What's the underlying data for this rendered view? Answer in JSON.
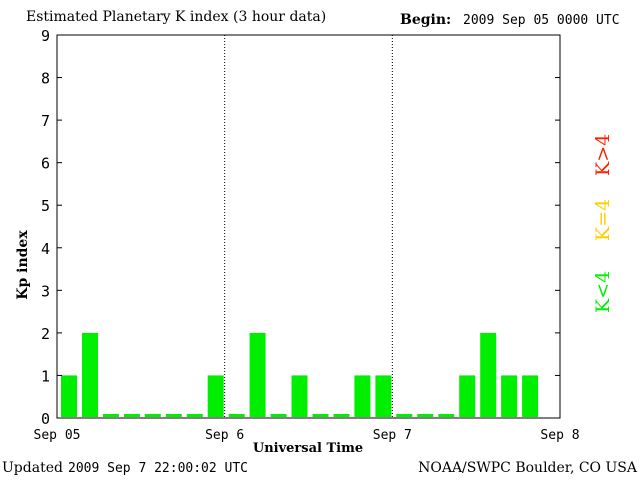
{
  "header": {
    "title": "Estimated Planetary K index (3 hour data)",
    "begin_label": "Begin:",
    "begin_value": "2009 Sep 05 0000 UTC"
  },
  "footer": {
    "updated_label": "Updated",
    "updated_value": "2009 Sep  7 22:00:02 UTC",
    "source": "NOAA/SWPC Boulder, CO USA"
  },
  "legend": {
    "high": {
      "label": "K>4",
      "color": "#ff2200"
    },
    "equal": {
      "label": "K=4",
      "color": "#ffcc00"
    },
    "low": {
      "label": "K<4",
      "color": "#00ee00"
    }
  },
  "chart_data": {
    "type": "bar",
    "title": "Estimated Planetary K index (3 hour data)",
    "xlabel": "Universal Time",
    "ylabel": "Kp index",
    "ylim": [
      0,
      9
    ],
    "yticks": [
      0,
      1,
      2,
      3,
      4,
      5,
      6,
      7,
      8,
      9
    ],
    "xticks": [
      "Sep 05",
      "Sep 6",
      "Sep 7",
      "Sep 8"
    ],
    "day_separators": true,
    "bar_color": "#00ee00",
    "days": [
      {
        "day": "Sep 05",
        "kp": [
          1,
          2,
          0,
          0,
          0,
          0,
          0,
          1
        ]
      },
      {
        "day": "Sep 6",
        "kp": [
          0,
          2,
          0,
          1,
          0,
          0,
          1,
          1
        ]
      },
      {
        "day": "Sep 7",
        "kp": [
          0,
          0,
          0,
          1,
          2,
          1,
          1
        ]
      }
    ]
  }
}
